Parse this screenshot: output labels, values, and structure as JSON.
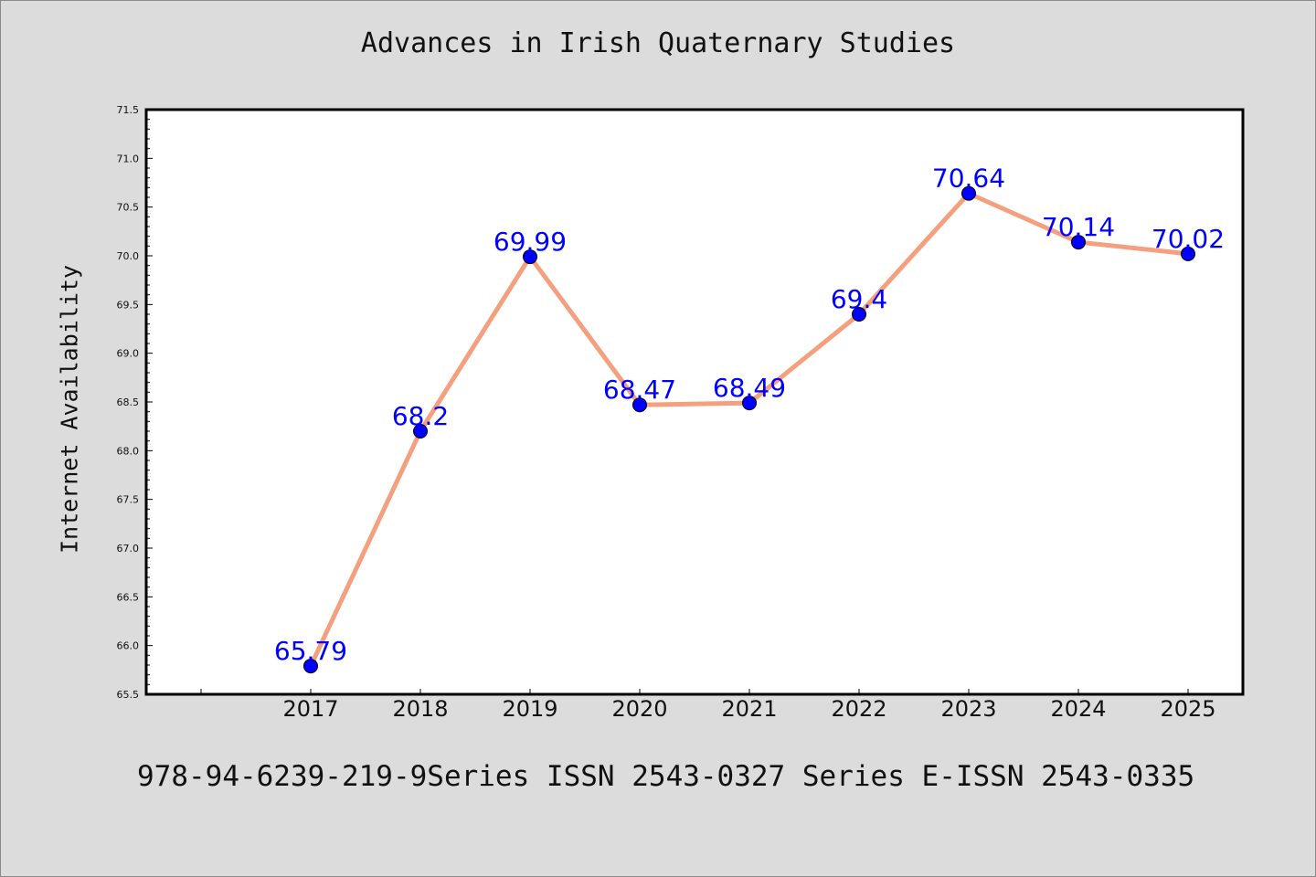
{
  "chart_data": {
    "type": "line",
    "title": "Advances in Irish Quaternary Studies",
    "ylabel": "Internet Availability",
    "xlabel": "",
    "categories": [
      "2017",
      "2018",
      "2019",
      "2020",
      "2021",
      "2022",
      "2023",
      "2024",
      "2025"
    ],
    "values": [
      65.79,
      68.2,
      69.99,
      68.47,
      68.49,
      69.4,
      70.64,
      70.14,
      70.02
    ],
    "data_labels": [
      "65.79",
      "68.2",
      "69.99",
      "68.47",
      "68.49",
      "69.4",
      "70.64",
      "70.14",
      "70.02"
    ],
    "ylim": [
      65.5,
      71.5
    ],
    "y_ticks": [
      "65.5",
      "66.0",
      "66.5",
      "67.0",
      "67.5",
      "68.0",
      "68.5",
      "69.0",
      "69.5",
      "70.0",
      "70.5",
      "71.0",
      "71.5"
    ],
    "grid": false,
    "colors": {
      "line": "#f4a07f",
      "marker": "#0000ff",
      "label": "#0000ff",
      "background": "#dcdcdc",
      "plot_background": "#ffffff"
    }
  },
  "footer_text": "978-94-6239-219-9Series ISSN 2543-0327 Series E-ISSN 2543-0335"
}
